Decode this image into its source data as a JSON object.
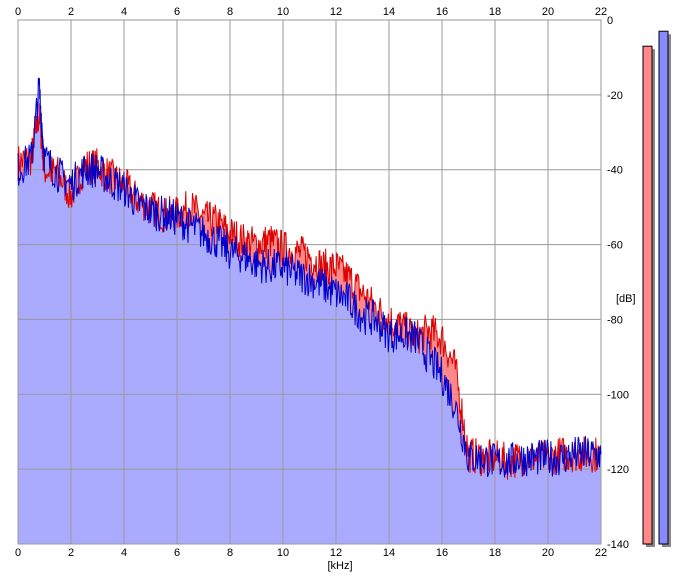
{
  "chart_data": {
    "type": "area",
    "xlabel": "[kHz]",
    "ylabel": "[dB]",
    "xlim": [
      0,
      22
    ],
    "ylim": [
      -140,
      0
    ],
    "x_ticks": [
      0,
      2,
      4,
      6,
      8,
      10,
      12,
      14,
      16,
      18,
      20,
      22
    ],
    "y_ticks": [
      0,
      -20,
      -40,
      -60,
      -80,
      -100,
      -120,
      -140
    ],
    "grid": true,
    "x": [
      0,
      0.5,
      0.8,
      1,
      1.5,
      2,
      2.5,
      3,
      3.5,
      4,
      4.5,
      5,
      5.5,
      6,
      6.5,
      7,
      7.5,
      8,
      8.5,
      9,
      9.5,
      10,
      10.5,
      11,
      11.5,
      12,
      12.5,
      13,
      13.5,
      14,
      14.5,
      15,
      15.5,
      16,
      16.5,
      17,
      17.5,
      18,
      18.5,
      19,
      19.5,
      20,
      20.5,
      21,
      21.5,
      22
    ],
    "series": [
      {
        "color": "#dd0000",
        "fill": "#ff8888",
        "values": [
          -38,
          -37,
          -25,
          -40,
          -41,
          -47,
          -39,
          -39,
          -42,
          -44,
          -48,
          -50,
          -52,
          -52,
          -50,
          -53,
          -54,
          -57,
          -59,
          -60,
          -59,
          -61,
          -62,
          -63,
          -66,
          -66,
          -69,
          -73,
          -77,
          -80,
          -82,
          -85,
          -83,
          -85,
          -93,
          -116,
          -117,
          -117,
          -118,
          -117,
          -117,
          -117,
          -116,
          -116,
          -116,
          -116
        ]
      },
      {
        "color": "#0000cc",
        "fill": "#aaaaff",
        "values": [
          -40,
          -37,
          -18,
          -37,
          -41,
          -44,
          -40,
          -40,
          -43,
          -45,
          -49,
          -51,
          -52,
          -53,
          -55,
          -57,
          -59,
          -62,
          -63,
          -65,
          -66,
          -66,
          -68,
          -69,
          -71,
          -73,
          -75,
          -79,
          -80,
          -84,
          -84,
          -85,
          -90,
          -95,
          -103,
          -117,
          -117,
          -118,
          -118,
          -117,
          -117,
          -117,
          -117,
          -116,
          -116,
          -116
        ]
      }
    ],
    "level_meters": [
      {
        "color": "#ff8888",
        "value": -7
      },
      {
        "color": "#8888ff",
        "value": -3
      }
    ]
  }
}
